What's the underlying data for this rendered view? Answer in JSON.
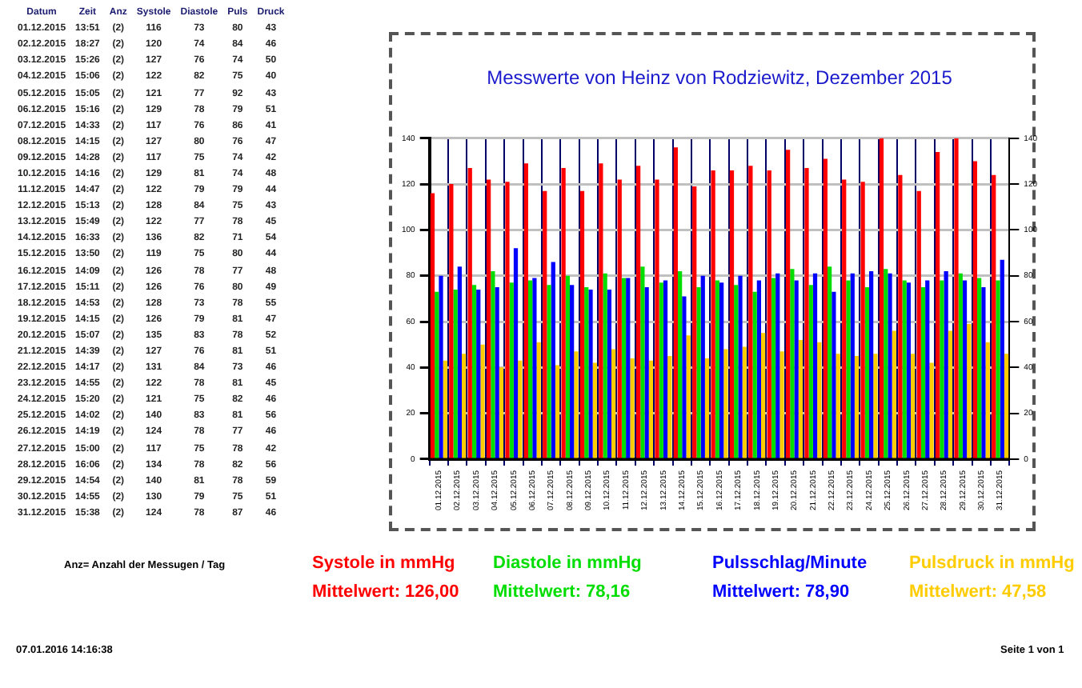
{
  "chart_data": [
    {
      "type": "other",
      "annotations": [
        "Datum",
        "Zeit",
        "Anz",
        "Systole",
        "Diastole",
        "Puls",
        "Druck",
        "01.12.2015",
        "13:51",
        "(2)",
        "116",
        "73",
        "80",
        "43",
        "02.12.2015",
        "18:27",
        "(2)",
        "120",
        "74",
        "84",
        "46",
        "03.12.2015",
        "15:26",
        "(2)",
        "127",
        "76",
        "74",
        "50",
        "04.12.2015",
        "15:06",
        "(2)",
        "122",
        "82",
        "75",
        "40",
        "05.12.2015",
        "15:05",
        "(2)",
        "121",
        "77",
        "92",
        "43",
        "06.12.2015",
        "15:16",
        "(2)",
        "129",
        "78",
        "79",
        "51",
        "07.12.2015",
        "14:33",
        "(2)",
        "117",
        "76",
        "86",
        "41",
        "08.12.2015",
        "14:15",
        "(2)",
        "127",
        "80",
        "76",
        "47",
        "09.12.2015",
        "14:28",
        "(2)",
        "117",
        "75",
        "74",
        "42",
        "10.12.2015",
        "14:16",
        "(2)",
        "129",
        "81",
        "74",
        "48",
        "11.12.2015",
        "14:47",
        "(2)",
        "122",
        "79",
        "79",
        "44",
        "12.12.2015",
        "15:13",
        "(2)",
        "128",
        "84",
        "75",
        "43",
        "13.12.2015",
        "15:49",
        "(2)",
        "122",
        "77",
        "78",
        "45",
        "14.12.2015",
        "16:33",
        "(2)",
        "136",
        "82",
        "71",
        "54",
        "15.12.2015",
        "13:50",
        "(2)",
        "119",
        "75",
        "80",
        "44",
        "16.12.2015",
        "14:09",
        "(2)",
        "126",
        "78",
        "77",
        "48",
        "17.12.2015",
        "15:11",
        "(2)",
        "126",
        "76",
        "80",
        "49",
        "18.12.2015",
        "14:53",
        "(2)",
        "128",
        "73",
        "78",
        "55",
        "19.12.2015",
        "14:15",
        "(2)",
        "126",
        "79",
        "81",
        "47",
        "20.12.2015",
        "15:07",
        "(2)",
        "135",
        "83",
        "78",
        "52",
        "21.12.2015",
        "14:39",
        "(2)",
        "127",
        "76",
        "81",
        "51",
        "22.12.2015",
        "14:17",
        "(2)",
        "131",
        "84",
        "73",
        "46",
        "23.12.2015",
        "14:55",
        "(2)",
        "122",
        "78",
        "81",
        "45",
        "24.12.2015",
        "15:20",
        "(2)",
        "121",
        "75",
        "82",
        "46",
        "25.12.2015",
        "14:02",
        "(2)",
        "140",
        "83",
        "81",
        "56",
        "26.12.2015",
        "14:19",
        "(2)",
        "124",
        "78",
        "77",
        "46",
        "27.12.2015",
        "15:00",
        "(2)",
        "117",
        "75",
        "78",
        "42",
        "28.12.2015",
        "16:06",
        "(2)",
        "134",
        "78",
        "82",
        "56",
        "29.12.2015",
        "14:54",
        "(2)",
        "140",
        "81",
        "78",
        "59",
        "30.12.2015",
        "14:55",
        "(2)",
        "130",
        "79",
        "75",
        "51",
        "31.12.2015",
        "15:38",
        "(2)",
        "124",
        "78",
        "87",
        "46",
        "Anz= Anzahl der Messugen / Tag",
        "07.01.2016 14:16:38"
      ]
    },
    {
      "type": "bar",
      "title": "Messwerte von Heinz von Rodziewitz, Dezember 2015",
      "categories": [
        "01.12.2015",
        "02.12.2015",
        "03.12.2015",
        "04.12.2015",
        "05.12.2015",
        "06.12.2015",
        "07.12.2015",
        "08.12.2015",
        "09.12.2015",
        "10.12.2015",
        "11.12.2015",
        "12.12.2015",
        "13.12.2015",
        "14.12.2015",
        "15.12.2015",
        "16.12.2015",
        "17.12.2015",
        "18.12.2015",
        "19.12.2015",
        "20.12.2015",
        "21.12.2015",
        "22.12.2015",
        "23.12.2015",
        "24.12.2015",
        "25.12.2015",
        "26.12.2015",
        "27.12.2015",
        "28.12.2015",
        "29.12.2015",
        "30.12.2015",
        "31.12.2015"
      ],
      "series": [
        {
          "name": "Systole in mmHg",
          "color": "#ff0000",
          "values": [
            116,
            120,
            127,
            122,
            121,
            129,
            117,
            127,
            117,
            129,
            122,
            128,
            122,
            136,
            119,
            126,
            126,
            128,
            126,
            135,
            127,
            131,
            122,
            121,
            140,
            124,
            117,
            134,
            140,
            130,
            124
          ]
        },
        {
          "name": "Diastole in mmHg",
          "color": "#00dd00",
          "values": [
            73,
            74,
            76,
            82,
            77,
            78,
            76,
            80,
            75,
            81,
            79,
            84,
            77,
            82,
            75,
            78,
            76,
            73,
            79,
            83,
            76,
            84,
            78,
            75,
            83,
            78,
            75,
            78,
            81,
            79,
            78
          ]
        },
        {
          "name": "Pulsschlag/Minute",
          "color": "#0000ff",
          "values": [
            80,
            84,
            74,
            75,
            92,
            79,
            86,
            76,
            74,
            74,
            79,
            75,
            78,
            71,
            80,
            77,
            80,
            78,
            81,
            78,
            81,
            73,
            81,
            82,
            81,
            77,
            78,
            82,
            78,
            75,
            87
          ]
        },
        {
          "name": "Pulsdruck in mmHg",
          "color": "#ffcc00",
          "values": [
            43,
            46,
            50,
            40,
            43,
            51,
            41,
            47,
            42,
            48,
            44,
            43,
            45,
            54,
            44,
            48,
            49,
            55,
            47,
            52,
            51,
            46,
            45,
            46,
            56,
            46,
            42,
            56,
            59,
            51,
            46
          ]
        }
      ],
      "ylim": [
        0,
        140
      ],
      "yticks": [
        0,
        20,
        40,
        60,
        80,
        100,
        120,
        140
      ],
      "y2lim": [
        0,
        140
      ],
      "y2ticks": [
        0,
        20,
        40,
        60,
        80,
        100,
        120,
        140
      ],
      "grid": true,
      "legend": "bottom",
      "annotations": [
        "Mittelwert: 126,00",
        "Mittelwert: 78,16",
        "Mittelwert: 78,90",
        "Mittelwert: 47,58",
        "Seite 1 von 1"
      ]
    }
  ]
}
